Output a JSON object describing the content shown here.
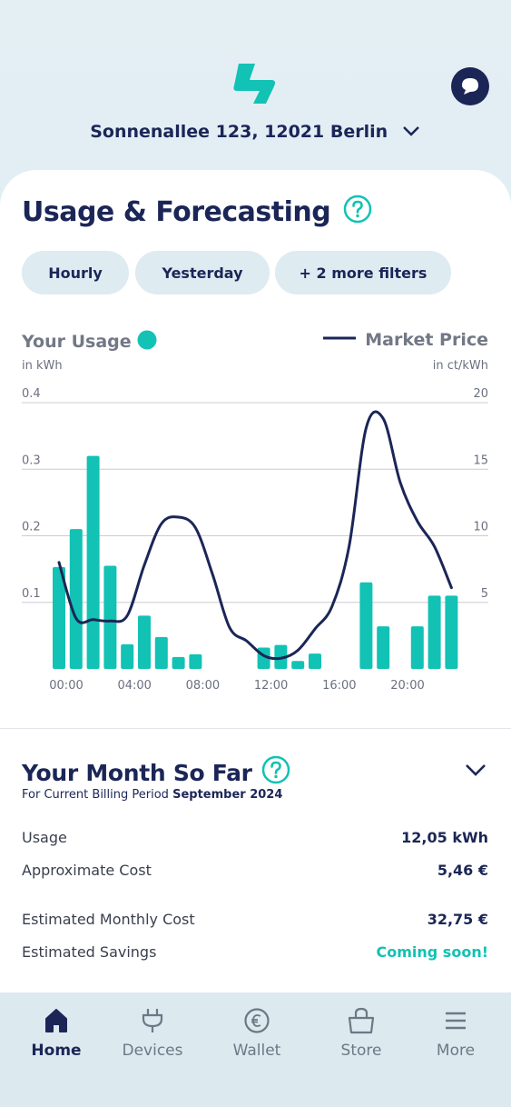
{
  "header": {
    "address": "Sonnenallee 123, 12021 Berlin"
  },
  "usage": {
    "title": "Usage & Forecasting",
    "filters": [
      "Hourly",
      "Yesterday",
      "+ 2 more filters"
    ]
  },
  "chart_data": {
    "type": "bar",
    "y_label": "in kWh",
    "y2_label": "in ct/kWh",
    "categories": [
      "00:00",
      null,
      null,
      null,
      "04:00",
      null,
      null,
      null,
      "08:00",
      null,
      null,
      null,
      "12:00",
      null,
      null,
      null,
      "16:00",
      null,
      null,
      null,
      "20:00",
      null,
      null,
      null
    ],
    "series": [
      {
        "name": "Your Usage",
        "type": "bar",
        "color": "#12c2b4",
        "values": [
          0.153,
          0.21,
          0.32,
          0.155,
          0.037,
          0.08,
          0.048,
          0.018,
          0.022,
          0,
          0,
          0,
          0.032,
          0.036,
          0.012,
          0.023,
          0,
          0,
          0.13,
          0.064,
          0,
          0.064,
          0.11,
          0.11
        ]
      },
      {
        "name": "Market Price",
        "type": "line",
        "axis": "y2",
        "color": "#1b2657",
        "values": [
          8.0,
          3.8,
          3.7,
          3.6,
          4.0,
          7.8,
          10.9,
          11.4,
          10.6,
          7.1,
          3.1,
          2.1,
          1.0,
          0.8,
          1.4,
          3.0,
          4.7,
          9.2,
          18.1,
          18.8,
          14.0,
          11.1,
          9.2,
          6.1
        ]
      }
    ],
    "ylim": [
      0,
      0.4
    ],
    "yticks": [
      0.1,
      0.2,
      0.3,
      0.4
    ],
    "y2lim": [
      0,
      20
    ],
    "y2ticks": [
      5,
      10,
      15,
      20
    ],
    "grid": true
  },
  "month": {
    "title": "Your Month So Far",
    "subtitle": "For Current Billing Period",
    "period": "September 2024",
    "rows": [
      {
        "label": "Usage",
        "value": "12,05 kWh"
      },
      {
        "label": "Approximate Cost",
        "value": "5,46 €"
      },
      {
        "label": "Estimated Monthly Cost",
        "value": "32,75 €"
      },
      {
        "label": "Estimated Savings",
        "value": "Coming soon!"
      }
    ]
  },
  "nav": {
    "items": [
      "Home",
      "Devices",
      "Wallet",
      "Store",
      "More"
    ],
    "active": 0
  }
}
